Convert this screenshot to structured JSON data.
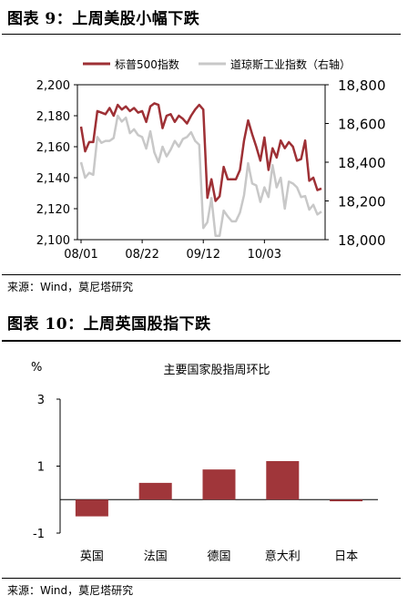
{
  "figure1": {
    "title": "图表 9：上周美股小幅下跌",
    "source": "来源：Wind，莫尼塔研究"
  },
  "figure2": {
    "title": "图表 10：上周英国股指下跌",
    "source": "来源：Wind，莫尼塔研究"
  },
  "colors": {
    "sp500": "#9e3035",
    "dow": "#c8c8c8",
    "bar": "#a0363a"
  },
  "chart_data": [
    {
      "type": "line",
      "title": "",
      "legend_position": "top",
      "x_tick_labels": [
        "08/01",
        "08/22",
        "09/12",
        "10/03"
      ],
      "x_tick_index": [
        0,
        15,
        30,
        45
      ],
      "ylim_left": [
        2100,
        2200
      ],
      "yticks_left": [
        "2,100",
        "2,120",
        "2,140",
        "2,160",
        "2,180",
        "2,200"
      ],
      "ylim_right": [
        18000,
        18800
      ],
      "yticks_right": [
        "18,000",
        "18,200",
        "18,400",
        "18,600",
        "18,800"
      ],
      "series": [
        {
          "name": "标普500指数",
          "axis": "left",
          "values": [
            2173,
            2157,
            2163,
            2163,
            2183,
            2182,
            2181,
            2185,
            2180,
            2187,
            2184,
            2186,
            2183,
            2185,
            2182,
            2183,
            2176,
            2186,
            2188,
            2187,
            2172,
            2180,
            2181,
            2176,
            2180,
            2178,
            2175,
            2180,
            2184,
            2187,
            2184,
            2127,
            2139,
            2125,
            2128,
            2147,
            2139,
            2139,
            2139,
            2145,
            2164,
            2177,
            2168,
            2160,
            2151,
            2166,
            2145,
            2159,
            2153,
            2164,
            2159,
            2163,
            2160,
            2151,
            2152,
            2164,
            2138,
            2140,
            2132,
            2133
          ]
        },
        {
          "name": "道琼斯工业指数（右轴）",
          "axis": "right",
          "values": [
            18400,
            18320,
            18345,
            18335,
            18530,
            18500,
            18510,
            18510,
            18525,
            18640,
            18610,
            18630,
            18550,
            18570,
            18540,
            18530,
            18470,
            18560,
            18450,
            18400,
            18480,
            18430,
            18465,
            18510,
            18480,
            18520,
            18530,
            18555,
            18510,
            18490,
            18060,
            18090,
            18215,
            18020,
            18020,
            18150,
            18120,
            18095,
            18095,
            18140,
            18230,
            18395,
            18290,
            18280,
            18195,
            18270,
            18220,
            18385,
            18270,
            18320,
            18160,
            18300,
            18290,
            18270,
            18220,
            18225,
            18155,
            18180,
            18130,
            18145
          ]
        }
      ]
    },
    {
      "type": "bar",
      "title": "主要国家股指周环比",
      "ylabel": "%",
      "ylim": [
        -1,
        3
      ],
      "yticks": [
        "-1",
        "1",
        "3"
      ],
      "categories": [
        "英国",
        "法国",
        "德国",
        "意大利",
        "日本"
      ],
      "values": [
        -0.5,
        0.5,
        0.9,
        1.15,
        -0.05
      ]
    }
  ]
}
